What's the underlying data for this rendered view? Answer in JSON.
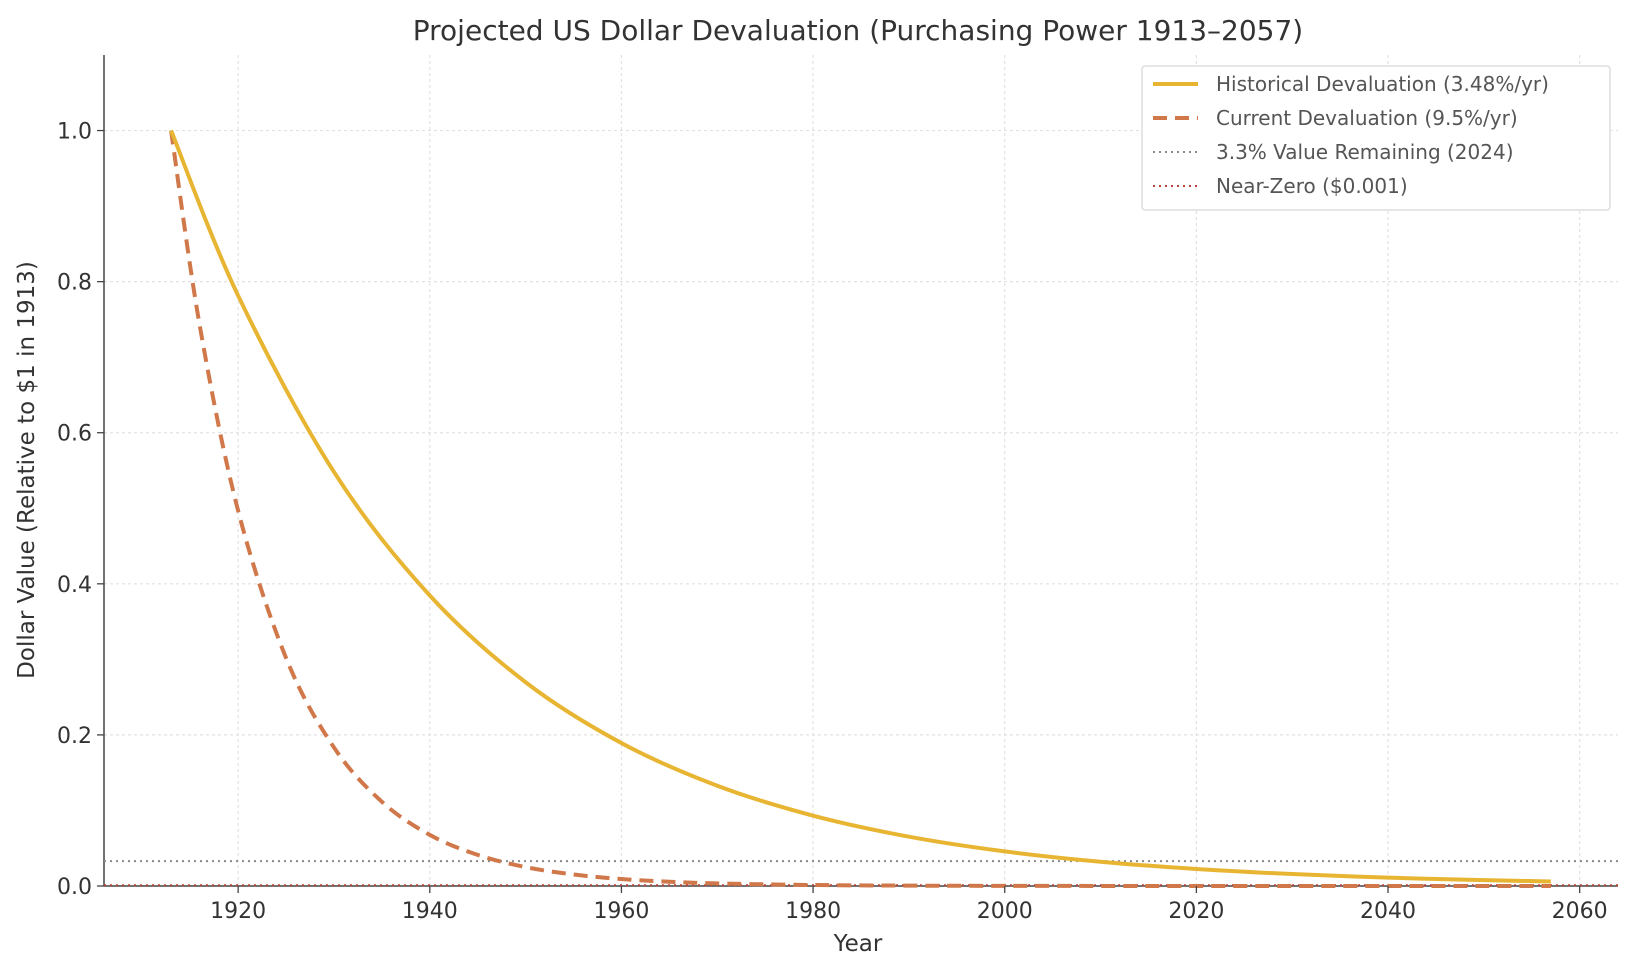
{
  "chart_data": {
    "type": "line",
    "title": "Projected US Dollar Devaluation (Purchasing Power 1913–2057)",
    "xlabel": "Year",
    "ylabel": "Dollar Value (Relative to $1 in 1913)",
    "xlim": [
      1906,
      2064
    ],
    "ylim": [
      0,
      1.1
    ],
    "x_ticks": [
      1920,
      1940,
      1960,
      1980,
      2000,
      2020,
      2040,
      2060
    ],
    "y_ticks": [
      0.0,
      0.2,
      0.4,
      0.6,
      0.8,
      1.0
    ],
    "grid": true,
    "legend_position": "top-right",
    "series": [
      {
        "name": "Historical Devaluation (3.48%/yr)",
        "color": "#e8b533",
        "style": "solid",
        "x": [
          1913,
          1920,
          1930,
          1940,
          1950,
          1960,
          1970,
          1980,
          1990,
          2000,
          2010,
          2020,
          2030,
          2040,
          2050,
          2057
        ],
        "values": [
          1.0,
          0.7814,
          0.5481,
          0.3845,
          0.2697,
          0.1892,
          0.1327,
          0.0931,
          0.0653,
          0.0458,
          0.0321,
          0.0225,
          0.0158,
          0.0111,
          0.0078,
          0.006
        ]
      },
      {
        "name": "Current Devaluation (9.5%/yr)",
        "color": "#d0784a",
        "style": "dashed",
        "x": [
          1913,
          1916,
          1920,
          1925,
          1930,
          1935,
          1940,
          1945,
          1950,
          1955,
          1960,
          1965,
          1970,
          1980,
          1990,
          2000,
          2020,
          2057
        ],
        "values": [
          1.0,
          0.7412,
          0.4966,
          0.3018,
          0.1834,
          0.1115,
          0.0677,
          0.0412,
          0.025,
          0.0152,
          0.0092,
          0.0056,
          0.0034,
          0.0013,
          0.0005,
          0.0002,
          0.0,
          0.0
        ]
      },
      {
        "name": "3.3% Value Remaining (2024)",
        "color": "#8a8a8a",
        "style": "dotted",
        "x": [
          1906,
          2064
        ],
        "values": [
          0.033,
          0.033
        ]
      },
      {
        "name": "Near-Zero ($0.001)",
        "color": "#b5433a",
        "style": "dotted",
        "x": [
          1906,
          2064
        ],
        "values": [
          0.001,
          0.001
        ]
      }
    ]
  }
}
